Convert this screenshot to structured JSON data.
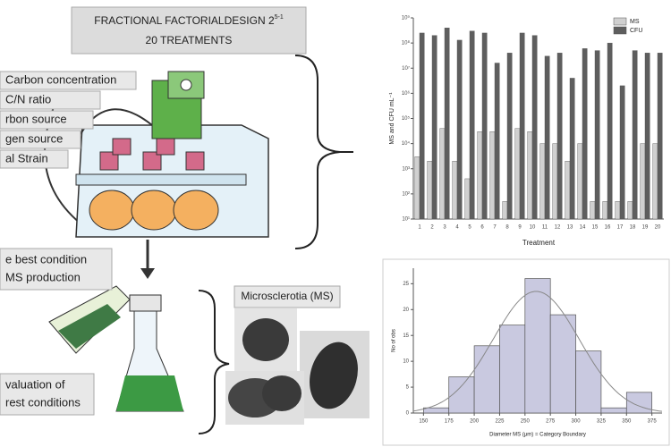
{
  "diagram": {
    "title": {
      "line1": "FRACTIONAL FACTORIALDESIGN 2",
      "exponent": "5-1",
      "line2": "20 TREATMENTS"
    },
    "factors": [
      "Carbon concentration",
      "C/N ratio",
      "rbon source",
      "gen source",
      "al Strain"
    ],
    "best_condition": [
      "e best condition",
      "MS production"
    ],
    "evaluation": [
      "valuation of",
      "rest conditions"
    ],
    "ms_label": "Microsclerotia (MS)"
  },
  "chart_data": [
    {
      "type": "bar",
      "x_label": "Treatment",
      "y_label": "MS and CFU mL⁻¹",
      "categories": [
        "1",
        "2",
        "3",
        "4",
        "5",
        "6",
        "7",
        "8",
        "9",
        "10",
        "11",
        "12",
        "13",
        "14",
        "15",
        "16",
        "17",
        "18",
        "19",
        "20"
      ],
      "series": [
        {
          "name": "MS",
          "color": "#d0d0d0",
          "values": [
            3000.0,
            2000.0,
            40000.0,
            2000.0,
            400.0,
            30000.0,
            30000.0,
            50.0,
            40000.0,
            30000.0,
            10000.0,
            10000.0,
            2000.0,
            10000.0,
            50.0,
            50.0,
            50.0,
            50.0,
            10000.0,
            10000.0
          ]
        },
        {
          "name": "CFU",
          "color": "#5e5e5e",
          "values": [
            250000000.0,
            200000000.0,
            400000000.0,
            130000000.0,
            300000000.0,
            250000000.0,
            16000000.0,
            40000000.0,
            250000000.0,
            200000000.0,
            30000000.0,
            40000000.0,
            4000000.0,
            60000000.0,
            50000000.0,
            100000000.0,
            2000000.0,
            50000000.0,
            40000000.0,
            40000000.0
          ]
        }
      ],
      "log_scale": true,
      "ylim": [
        10,
        1000000000.0
      ],
      "yticks": [
        {
          "value": 10,
          "label": "10¹"
        },
        {
          "value": 100,
          "label": "10²"
        },
        {
          "value": 1000,
          "label": "10³"
        },
        {
          "value": 10000,
          "label": "10⁴"
        },
        {
          "value": 100000,
          "label": "10⁵"
        },
        {
          "value": 1000000,
          "label": "10⁶"
        },
        {
          "value": 10000000,
          "label": "10⁷"
        },
        {
          "value": 100000000,
          "label": "10⁸"
        },
        {
          "value": 1000000000,
          "label": "10⁹"
        }
      ],
      "legend": "top-right"
    },
    {
      "type": "histogram",
      "x_label": "Diameter MS (μm) = Category Boundary",
      "y_label": "No of obs",
      "bins": [
        150,
        175,
        200,
        225,
        250,
        275,
        300,
        325,
        350,
        375
      ],
      "values": [
        1,
        7,
        13,
        17,
        26,
        19,
        12,
        1,
        4
      ],
      "color": "#c9c9e0",
      "xlim": [
        140,
        385
      ],
      "xticks": [
        150,
        175,
        200,
        225,
        250,
        275,
        300,
        325,
        350,
        375
      ],
      "ylim": [
        0,
        28
      ],
      "yticks": [
        0,
        5,
        10,
        15,
        20,
        25
      ]
    }
  ]
}
